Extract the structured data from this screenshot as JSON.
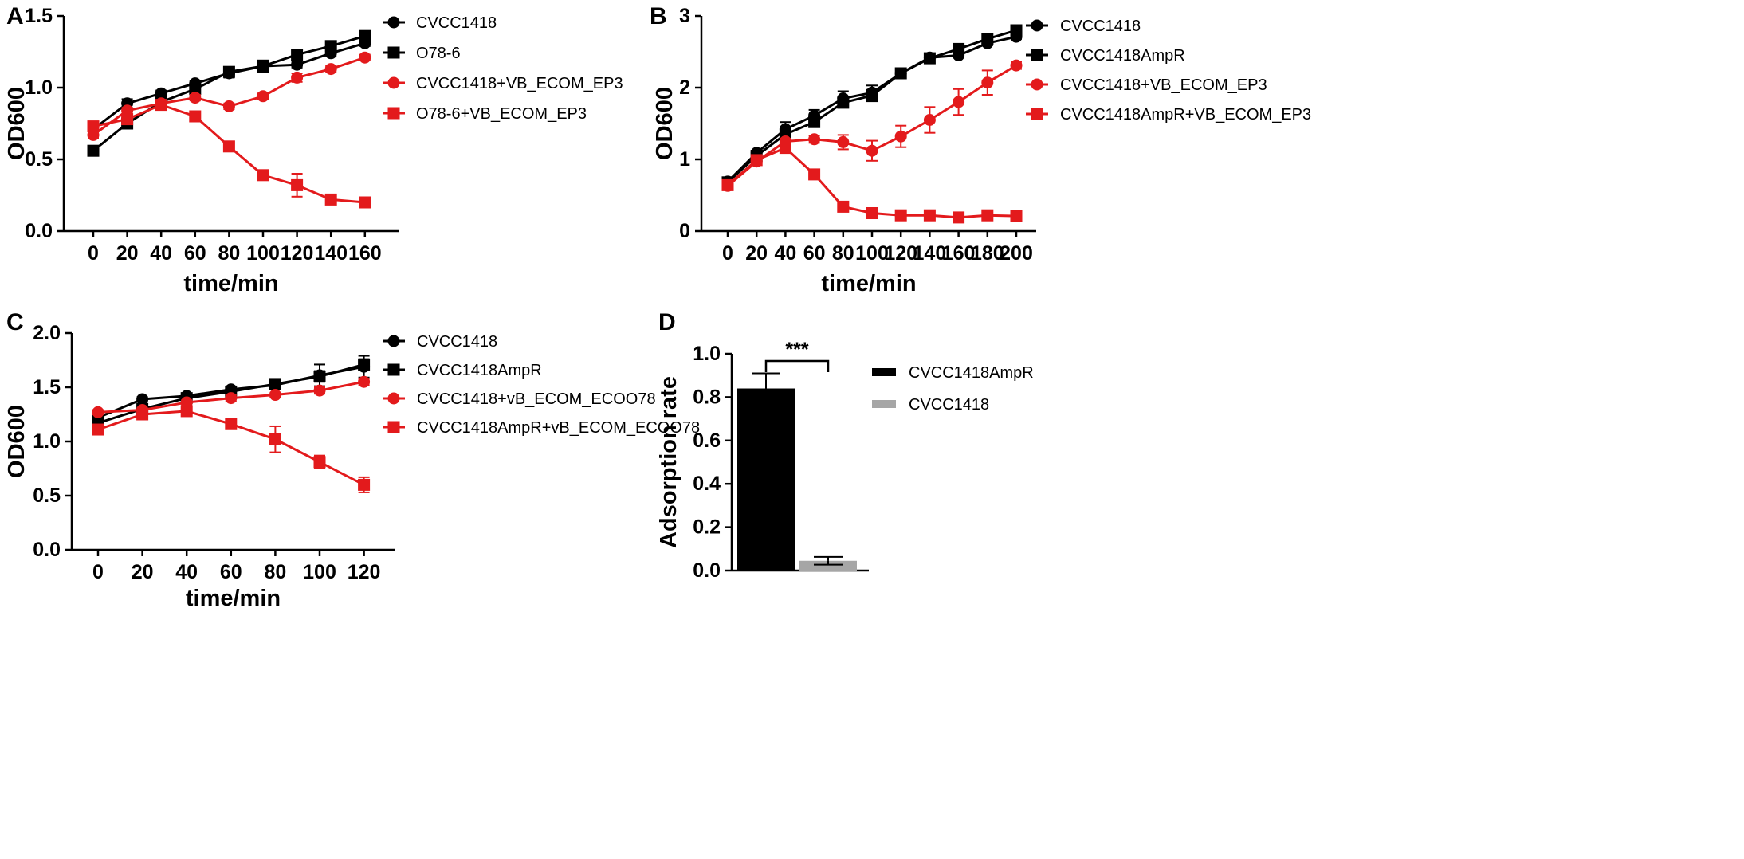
{
  "figure": {
    "panel_letters": [
      "A",
      "B",
      "C",
      "D"
    ]
  },
  "chart_data": [
    {
      "panel": "A",
      "type": "line",
      "title": "",
      "xlabel": "time/min",
      "ylabel": "OD600",
      "x": [
        0,
        20,
        40,
        60,
        80,
        100,
        120,
        140,
        160
      ],
      "x_ticks": [
        "0",
        "20",
        "40",
        "60",
        "80",
        "100",
        "120",
        "140",
        "160"
      ],
      "y_ticks": [
        "0.0",
        "0.5",
        "1.0",
        "1.5"
      ],
      "ylim": [
        0,
        1.5
      ],
      "legend_position": "right",
      "series": [
        {
          "name": "CVCC1418",
          "color": "#000000",
          "marker": "circle",
          "values": [
            0.71,
            0.89,
            0.96,
            1.03,
            1.1,
            1.15,
            1.16,
            1.24,
            1.31
          ],
          "errors": [
            0.02,
            0.03,
            0.02,
            0.02,
            0.03,
            0.04,
            0.02,
            0.02,
            0.02
          ]
        },
        {
          "name": "O78-6",
          "color": "#000000",
          "marker": "square",
          "values": [
            0.56,
            0.75,
            0.9,
            0.99,
            1.11,
            1.15,
            1.23,
            1.29,
            1.36
          ],
          "errors": [
            0.02,
            0.02,
            0.02,
            0.02,
            0.03,
            0.03,
            0.02,
            0.02,
            0.02
          ]
        },
        {
          "name": "CVCC1418+VB_ECOM_EP3",
          "color": "#e31a1c",
          "marker": "circle",
          "values": [
            0.67,
            0.84,
            0.89,
            0.93,
            0.87,
            0.94,
            1.07,
            1.13,
            1.21
          ],
          "errors": [
            0.02,
            0.02,
            0.02,
            0.02,
            0.02,
            0.02,
            0.03,
            0.02,
            0.02
          ]
        },
        {
          "name": "O78-6+VB_ECOM_EP3",
          "color": "#e31a1c",
          "marker": "square",
          "values": [
            0.73,
            0.78,
            0.88,
            0.8,
            0.59,
            0.39,
            0.32,
            0.22,
            0.2
          ],
          "errors": [
            0.02,
            0.02,
            0.02,
            0.02,
            0.02,
            0.02,
            0.08,
            0.02,
            0.02
          ]
        }
      ]
    },
    {
      "panel": "B",
      "type": "line",
      "title": "",
      "xlabel": "time/min",
      "ylabel": "OD600",
      "x": [
        0,
        20,
        40,
        60,
        80,
        100,
        120,
        140,
        160,
        180,
        200
      ],
      "x_ticks": [
        "0",
        "20",
        "40",
        "60",
        "80",
        "100",
        "120",
        "140",
        "160",
        "180",
        "200"
      ],
      "y_ticks": [
        "0",
        "1",
        "2",
        "3"
      ],
      "ylim": [
        0,
        3
      ],
      "legend_position": "right",
      "series": [
        {
          "name": "CVCC1418",
          "color": "#000000",
          "marker": "circle",
          "values": [
            0.69,
            1.09,
            1.42,
            1.61,
            1.85,
            1.93,
            2.2,
            2.42,
            2.45,
            2.62,
            2.71
          ],
          "errors": [
            0.02,
            0.03,
            0.1,
            0.08,
            0.1,
            0.1,
            0.04,
            0.03,
            0.03,
            0.03,
            0.03
          ]
        },
        {
          "name": "CVCC1418AmpR",
          "color": "#000000",
          "marker": "square",
          "values": [
            0.68,
            1.05,
            1.35,
            1.52,
            1.79,
            1.89,
            2.2,
            2.41,
            2.54,
            2.68,
            2.8
          ],
          "errors": [
            0.02,
            0.03,
            0.08,
            0.06,
            0.06,
            0.08,
            0.04,
            0.03,
            0.03,
            0.03,
            0.03
          ]
        },
        {
          "name": "CVCC1418+VB_ECOM_EP3",
          "color": "#e31a1c",
          "marker": "circle",
          "values": [
            0.63,
            0.97,
            1.25,
            1.28,
            1.24,
            1.12,
            1.32,
            1.55,
            1.8,
            2.07,
            2.31
          ],
          "errors": [
            0.02,
            0.03,
            0.04,
            0.05,
            0.1,
            0.14,
            0.15,
            0.18,
            0.18,
            0.17,
            0.05
          ]
        },
        {
          "name": "CVCC1418AmpR+VB_ECOM_EP3",
          "color": "#e31a1c",
          "marker": "square",
          "values": [
            0.64,
            0.99,
            1.16,
            0.79,
            0.34,
            0.25,
            0.22,
            0.22,
            0.19,
            0.22,
            0.21
          ],
          "errors": [
            0.02,
            0.03,
            0.05,
            0.05,
            0.03,
            0.02,
            0.02,
            0.02,
            0.02,
            0.02,
            0.02
          ]
        }
      ]
    },
    {
      "panel": "C",
      "type": "line",
      "title": "",
      "xlabel": "time/min",
      "ylabel": "OD600",
      "x": [
        0,
        20,
        40,
        60,
        80,
        100,
        120
      ],
      "x_ticks": [
        "0",
        "20",
        "40",
        "60",
        "80",
        "100",
        "120"
      ],
      "y_ticks": [
        "0.0",
        "0.5",
        "1.0",
        "1.5",
        "2.0"
      ],
      "ylim": [
        0,
        2
      ],
      "legend_position": "right",
      "series": [
        {
          "name": "CVCC1418",
          "color": "#000000",
          "marker": "circle",
          "values": [
            1.22,
            1.39,
            1.42,
            1.48,
            1.52,
            1.61,
            1.69
          ],
          "errors": [
            0.02,
            0.02,
            0.02,
            0.02,
            0.02,
            0.1,
            0.1
          ]
        },
        {
          "name": "CVCC1418AmpR",
          "color": "#000000",
          "marker": "square",
          "values": [
            1.17,
            1.3,
            1.4,
            1.46,
            1.53,
            1.6,
            1.71
          ],
          "errors": [
            0.02,
            0.02,
            0.02,
            0.02,
            0.02,
            0.05,
            0.05
          ]
        },
        {
          "name": "CVCC1418+vB_ECOM_ECOO78",
          "color": "#e31a1c",
          "marker": "circle",
          "values": [
            1.27,
            1.29,
            1.36,
            1.4,
            1.43,
            1.47,
            1.55
          ],
          "errors": [
            0.02,
            0.02,
            0.02,
            0.03,
            0.02,
            0.03,
            0.03
          ]
        },
        {
          "name": "CVCC1418AmpR+vB_ECOM_ECOO78",
          "color": "#e31a1c",
          "marker": "square",
          "values": [
            1.11,
            1.25,
            1.28,
            1.16,
            1.02,
            0.81,
            0.6
          ],
          "errors": [
            0.02,
            0.02,
            0.02,
            0.02,
            0.12,
            0.06,
            0.07
          ]
        }
      ]
    },
    {
      "panel": "D",
      "type": "bar",
      "title": "",
      "xlabel": "",
      "ylabel": "Adsorption rate",
      "categories": [
        "CVCC1418AmpR",
        "CVCC1418"
      ],
      "values": [
        0.84,
        0.045
      ],
      "errors": [
        0.07,
        0.018
      ],
      "colors": [
        "#000000",
        "#a6a6a6"
      ],
      "y_ticks": [
        "0.0",
        "0.2",
        "0.4",
        "0.6",
        "0.8",
        "1.0"
      ],
      "ylim": [
        0,
        1.0
      ],
      "legend_position": "right",
      "annotation": "***"
    }
  ]
}
